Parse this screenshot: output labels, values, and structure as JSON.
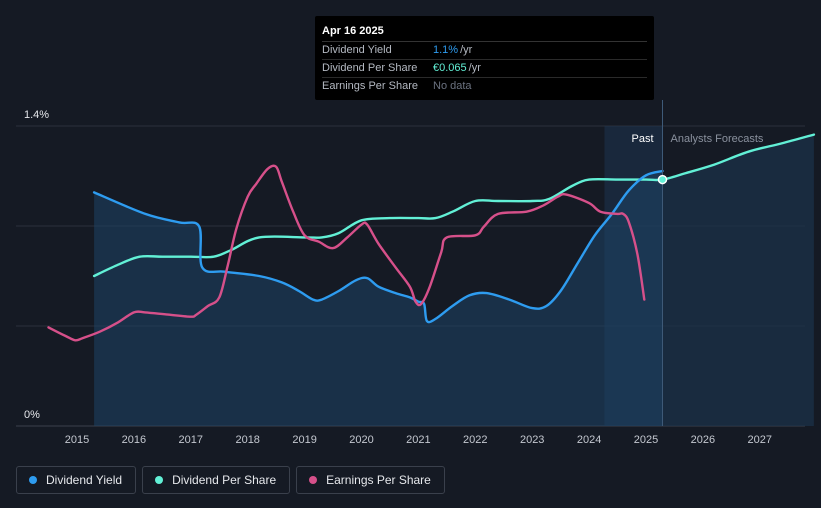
{
  "tooltip": {
    "date": "Apr 16 2025",
    "rows": [
      {
        "name": "Dividend Yield",
        "value": "1.1%",
        "unit": "/yr"
      },
      {
        "name": "Dividend Per Share",
        "value": "€0.065",
        "unit": "/yr"
      },
      {
        "name": "Earnings Per Share",
        "value": "No data",
        "unit": ""
      }
    ]
  },
  "legend": [
    {
      "label": "Dividend Yield",
      "color": "#2e9cf0"
    },
    {
      "label": "Dividend Per Share",
      "color": "#62f0d6"
    },
    {
      "label": "Earnings Per Share",
      "color": "#d6508a"
    }
  ],
  "regions": {
    "past_label": "Past",
    "forecast_label": "Analysts Forecasts"
  },
  "chart_data": {
    "type": "line",
    "x_ticks": [
      "2015",
      "2016",
      "2017",
      "2018",
      "2019",
      "2020",
      "2021",
      "2022",
      "2023",
      "2024",
      "2025",
      "2026",
      "2027"
    ],
    "y_tick_labels": [
      "1.4%",
      "0%"
    ],
    "ylim": [
      0,
      1.4
    ],
    "xlim": [
      2014.5,
      2027.95
    ],
    "past_end": 2025.29,
    "highlight_start": 2024.27,
    "series": [
      {
        "name": "Dividend Yield",
        "color": "#2e9cf0",
        "filled": true,
        "points": [
          [
            2015.3,
            1.09
          ],
          [
            2016.2,
            0.99
          ],
          [
            2016.8,
            0.95
          ],
          [
            2017.15,
            0.93
          ],
          [
            2017.2,
            0.74
          ],
          [
            2017.6,
            0.72
          ],
          [
            2018.2,
            0.7
          ],
          [
            2018.6,
            0.67
          ],
          [
            2018.9,
            0.63
          ],
          [
            2019.15,
            0.59
          ],
          [
            2019.3,
            0.59
          ],
          [
            2019.6,
            0.63
          ],
          [
            2019.9,
            0.68
          ],
          [
            2020.1,
            0.69
          ],
          [
            2020.3,
            0.65
          ],
          [
            2020.6,
            0.62
          ],
          [
            2020.85,
            0.6
          ],
          [
            2021.0,
            0.58
          ],
          [
            2021.1,
            0.57
          ],
          [
            2021.15,
            0.49
          ],
          [
            2021.3,
            0.5
          ],
          [
            2021.6,
            0.56
          ],
          [
            2021.9,
            0.61
          ],
          [
            2022.2,
            0.62
          ],
          [
            2022.6,
            0.59
          ],
          [
            2023.0,
            0.55
          ],
          [
            2023.25,
            0.56
          ],
          [
            2023.5,
            0.63
          ],
          [
            2023.8,
            0.76
          ],
          [
            2024.1,
            0.89
          ],
          [
            2024.4,
            0.99
          ],
          [
            2024.7,
            1.1
          ],
          [
            2025.0,
            1.17
          ],
          [
            2025.29,
            1.19
          ]
        ]
      },
      {
        "name": "Dividend Per Share",
        "color": "#62f0d6",
        "filled": false,
        "points": [
          [
            2015.3,
            0.7
          ],
          [
            2015.7,
            0.75
          ],
          [
            2016.1,
            0.79
          ],
          [
            2016.5,
            0.79
          ],
          [
            2017.0,
            0.79
          ],
          [
            2017.4,
            0.79
          ],
          [
            2017.7,
            0.82
          ],
          [
            2018.2,
            0.88
          ],
          [
            2019.0,
            0.88
          ],
          [
            2019.3,
            0.88
          ],
          [
            2019.6,
            0.9
          ],
          [
            2020.0,
            0.96
          ],
          [
            2020.5,
            0.97
          ],
          [
            2021.0,
            0.97
          ],
          [
            2021.3,
            0.97
          ],
          [
            2021.6,
            1.0
          ],
          [
            2022.0,
            1.05
          ],
          [
            2022.4,
            1.05
          ],
          [
            2023.0,
            1.05
          ],
          [
            2023.3,
            1.06
          ],
          [
            2023.7,
            1.12
          ],
          [
            2024.0,
            1.15
          ],
          [
            2024.5,
            1.15
          ],
          [
            2025.0,
            1.15
          ],
          [
            2025.29,
            1.15
          ],
          [
            2025.7,
            1.18
          ],
          [
            2026.2,
            1.22
          ],
          [
            2026.8,
            1.28
          ],
          [
            2027.4,
            1.32
          ],
          [
            2027.95,
            1.36
          ]
        ]
      },
      {
        "name": "Earnings Per Share",
        "color": "#d6508a",
        "filled": false,
        "points": [
          [
            2014.5,
            0.46
          ],
          [
            2014.8,
            0.42
          ],
          [
            2014.97,
            0.4
          ],
          [
            2015.1,
            0.41
          ],
          [
            2015.4,
            0.44
          ],
          [
            2015.7,
            0.48
          ],
          [
            2016.0,
            0.53
          ],
          [
            2016.2,
            0.53
          ],
          [
            2016.6,
            0.52
          ],
          [
            2017.0,
            0.51
          ],
          [
            2017.1,
            0.52
          ],
          [
            2017.3,
            0.56
          ],
          [
            2017.5,
            0.6
          ],
          [
            2017.65,
            0.75
          ],
          [
            2017.8,
            0.92
          ],
          [
            2018.0,
            1.07
          ],
          [
            2018.15,
            1.13
          ],
          [
            2018.35,
            1.2
          ],
          [
            2018.5,
            1.21
          ],
          [
            2018.6,
            1.14
          ],
          [
            2018.8,
            1.0
          ],
          [
            2019.0,
            0.89
          ],
          [
            2019.25,
            0.86
          ],
          [
            2019.5,
            0.83
          ],
          [
            2019.75,
            0.88
          ],
          [
            2020.0,
            0.94
          ],
          [
            2020.1,
            0.94
          ],
          [
            2020.3,
            0.85
          ],
          [
            2020.6,
            0.74
          ],
          [
            2020.85,
            0.65
          ],
          [
            2020.95,
            0.58
          ],
          [
            2021.05,
            0.57
          ],
          [
            2021.2,
            0.65
          ],
          [
            2021.4,
            0.81
          ],
          [
            2021.5,
            0.88
          ],
          [
            2022.0,
            0.89
          ],
          [
            2022.15,
            0.93
          ],
          [
            2022.4,
            0.99
          ],
          [
            2022.9,
            1.0
          ],
          [
            2023.2,
            1.03
          ],
          [
            2023.45,
            1.07
          ],
          [
            2023.6,
            1.08
          ],
          [
            2024.0,
            1.04
          ],
          [
            2024.2,
            1.0
          ],
          [
            2024.5,
            0.99
          ],
          [
            2024.6,
            0.99
          ],
          [
            2024.7,
            0.95
          ],
          [
            2024.85,
            0.8
          ],
          [
            2024.97,
            0.59
          ]
        ]
      }
    ]
  }
}
